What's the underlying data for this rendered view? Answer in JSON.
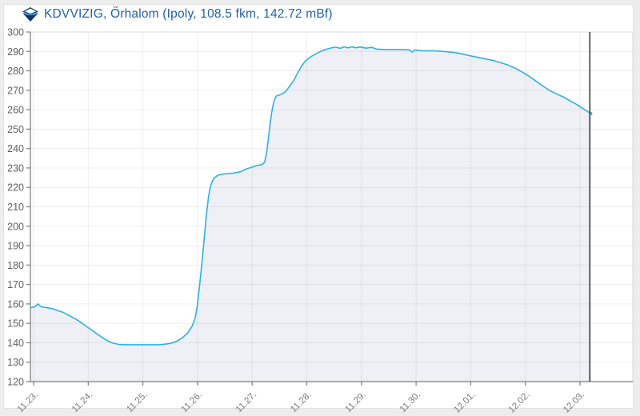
{
  "header": {
    "title": "KDVVIZIG, Őrhalom (Ipoly, 108.5 fkm, 142.72 mBf)"
  },
  "colors": {
    "title_text": "#2061a7",
    "line": "#2fb0e4",
    "area_fill": "#eef0f6",
    "now_line": "#3c3c3c",
    "axis": "#7d7d7d",
    "plot_border": "#dcdcdc",
    "grid": "rgba(0,0,0,0.065)",
    "y_tick_label": "#5f5f5f",
    "x_tick_label": "#7a7a7a",
    "page_bg": "#ededed",
    "card_bg": "#ffffff",
    "logo_navy": "#16356e",
    "logo_cyan": "#2fb0e4"
  },
  "chart_data": {
    "type": "area",
    "title": "KDVVIZIG, Őrhalom (Ipoly, 108.5 fkm, 142.72 mBf)",
    "station": "Őrhalom",
    "river": "Ipoly",
    "river_km_label": "108.5 fkm",
    "gauge_zero_label": "142.72 mBf",
    "ylim": [
      120,
      300
    ],
    "y_ticks": [
      120,
      130,
      140,
      150,
      160,
      170,
      180,
      190,
      200,
      210,
      220,
      230,
      240,
      250,
      260,
      270,
      280,
      290,
      300
    ],
    "x_tick_labels": [
      "11.23.",
      "11.24.",
      "11.25.",
      "11.26.",
      "11.27.",
      "11.28.",
      "11.29.",
      "11.30.",
      "12.01.",
      "12.02.",
      "12.03."
    ],
    "x_tick_days": [
      0,
      1,
      2,
      3,
      4,
      5,
      6,
      7,
      8,
      9,
      10
    ],
    "now_marker_day": 10.18,
    "grid": true,
    "legend": null,
    "points_day_value": [
      [
        -0.06,
        158
      ],
      [
        0.02,
        158.5
      ],
      [
        0.08,
        160
      ],
      [
        0.14,
        158.5
      ],
      [
        0.25,
        158
      ],
      [
        0.35,
        157.5
      ],
      [
        0.45,
        156.5
      ],
      [
        0.55,
        155.5
      ],
      [
        0.65,
        154
      ],
      [
        0.75,
        152.5
      ],
      [
        0.85,
        150.8
      ],
      [
        0.95,
        148.8
      ],
      [
        1.05,
        146.8
      ],
      [
        1.15,
        144.8
      ],
      [
        1.25,
        142.8
      ],
      [
        1.35,
        141
      ],
      [
        1.45,
        139.8
      ],
      [
        1.55,
        139.2
      ],
      [
        1.7,
        139
      ],
      [
        1.9,
        139
      ],
      [
        2.1,
        139
      ],
      [
        2.3,
        139
      ],
      [
        2.42,
        139.3
      ],
      [
        2.52,
        139.8
      ],
      [
        2.62,
        140.8
      ],
      [
        2.72,
        142.5
      ],
      [
        2.82,
        145
      ],
      [
        2.9,
        148.5
      ],
      [
        2.96,
        153
      ],
      [
        3.0,
        160
      ],
      [
        3.04,
        170
      ],
      [
        3.08,
        181
      ],
      [
        3.12,
        193
      ],
      [
        3.16,
        205
      ],
      [
        3.2,
        215
      ],
      [
        3.24,
        221
      ],
      [
        3.3,
        224.8
      ],
      [
        3.38,
        226.3
      ],
      [
        3.5,
        227
      ],
      [
        3.65,
        227.3
      ],
      [
        3.78,
        228
      ],
      [
        3.88,
        229.3
      ],
      [
        3.98,
        230.3
      ],
      [
        4.08,
        231.2
      ],
      [
        4.18,
        231.8
      ],
      [
        4.23,
        233
      ],
      [
        4.27,
        239
      ],
      [
        4.3,
        246
      ],
      [
        4.33,
        253
      ],
      [
        4.36,
        259
      ],
      [
        4.4,
        264.5
      ],
      [
        4.44,
        267
      ],
      [
        4.52,
        267.8
      ],
      [
        4.6,
        269
      ],
      [
        4.68,
        271.8
      ],
      [
        4.76,
        275
      ],
      [
        4.83,
        278.8
      ],
      [
        4.9,
        282.3
      ],
      [
        4.97,
        285
      ],
      [
        5.07,
        287.2
      ],
      [
        5.18,
        289
      ],
      [
        5.3,
        290.6
      ],
      [
        5.42,
        291.6
      ],
      [
        5.52,
        292.2
      ],
      [
        5.62,
        291.6
      ],
      [
        5.68,
        292.4
      ],
      [
        5.75,
        291.8
      ],
      [
        5.82,
        292.4
      ],
      [
        5.9,
        291.9
      ],
      [
        5.98,
        292.3
      ],
      [
        6.08,
        291.7
      ],
      [
        6.19,
        292.1
      ],
      [
        6.28,
        291.2
      ],
      [
        6.45,
        291
      ],
      [
        6.6,
        291
      ],
      [
        6.75,
        291
      ],
      [
        6.88,
        290.8
      ],
      [
        6.93,
        289.6
      ],
      [
        6.98,
        290.8
      ],
      [
        7.1,
        290.3
      ],
      [
        7.3,
        290.3
      ],
      [
        7.5,
        290
      ],
      [
        7.65,
        289.6
      ],
      [
        7.8,
        289
      ],
      [
        7.95,
        288
      ],
      [
        8.1,
        287.1
      ],
      [
        8.25,
        286.3
      ],
      [
        8.4,
        285.4
      ],
      [
        8.55,
        284.2
      ],
      [
        8.68,
        283
      ],
      [
        8.82,
        281.3
      ],
      [
        8.95,
        279.3
      ],
      [
        9.08,
        277
      ],
      [
        9.2,
        274.6
      ],
      [
        9.32,
        272.2
      ],
      [
        9.45,
        269.8
      ],
      [
        9.58,
        268
      ],
      [
        9.7,
        266.5
      ],
      [
        9.82,
        264.5
      ],
      [
        9.94,
        262.7
      ],
      [
        10.05,
        260.7
      ],
      [
        10.14,
        259
      ],
      [
        10.2,
        258
      ]
    ]
  }
}
